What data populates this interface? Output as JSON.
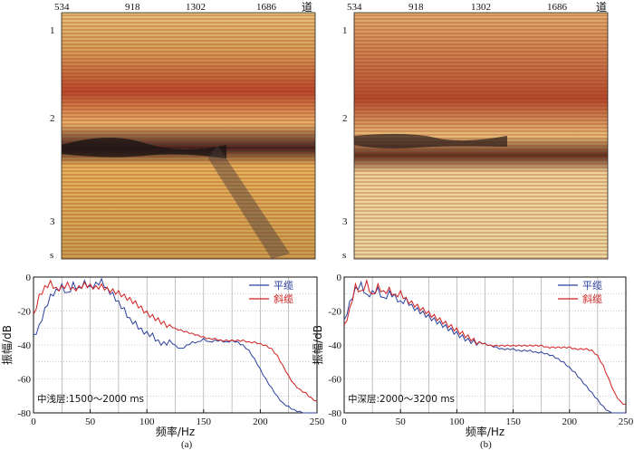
{
  "figure": {
    "sub_labels": [
      "(a)",
      "(b)"
    ],
    "trace_ticks": [
      "534",
      "918",
      "1302",
      "1686"
    ],
    "trace_unit": "道",
    "time_ticks": [
      "1",
      "2",
      "3"
    ],
    "time_unit": "s"
  },
  "chart_data": [
    {
      "type": "line",
      "panel": "a",
      "title": "",
      "note": "中浅层:1500～2000 ms",
      "xlabel": "频率/Hz",
      "ylabel": "振幅/dB",
      "xlim": [
        0,
        250
      ],
      "ylim": [
        -80,
        0
      ],
      "xticks": [
        "0",
        "50",
        "100",
        "150",
        "200",
        "250"
      ],
      "yticks": [
        "0",
        "-20",
        "-40",
        "-60",
        "-80"
      ],
      "legend_position": "top-right",
      "series": [
        {
          "name": "平缆",
          "color": "#2b3f9e",
          "x": [
            0,
            5,
            10,
            15,
            20,
            25,
            30,
            35,
            40,
            45,
            50,
            55,
            60,
            65,
            70,
            75,
            80,
            85,
            90,
            95,
            100,
            105,
            110,
            115,
            120,
            125,
            130,
            135,
            140,
            145,
            150,
            155,
            160,
            165,
            170,
            175,
            180,
            185,
            190,
            195,
            200,
            205,
            210,
            215,
            220,
            225,
            230,
            235,
            240,
            245,
            250
          ],
          "y": [
            -34,
            -28,
            -18,
            -10,
            -7,
            -4,
            -9,
            -3,
            -6,
            -2,
            -5,
            -3,
            -1,
            -6,
            -9,
            -14,
            -18,
            -24,
            -26,
            -30,
            -32,
            -33,
            -37,
            -38,
            -37,
            -40,
            -42,
            -40,
            -38,
            -38,
            -36,
            -38,
            -37,
            -37,
            -38,
            -37,
            -38,
            -40,
            -43,
            -48,
            -54,
            -60,
            -65,
            -70,
            -74,
            -76,
            -78,
            -79,
            -80,
            -80,
            -80
          ]
        },
        {
          "name": "斜缆",
          "color": "#d11f1f",
          "x": [
            0,
            5,
            10,
            15,
            20,
            25,
            30,
            35,
            40,
            45,
            50,
            55,
            60,
            65,
            70,
            75,
            80,
            85,
            90,
            95,
            100,
            105,
            110,
            115,
            120,
            125,
            130,
            135,
            140,
            145,
            150,
            155,
            160,
            165,
            170,
            175,
            180,
            185,
            190,
            195,
            200,
            205,
            210,
            215,
            220,
            225,
            230,
            235,
            240,
            245,
            250
          ],
          "y": [
            -22,
            -10,
            -5,
            -2,
            -6,
            -5,
            -3,
            -6,
            -5,
            -3,
            -4,
            -5,
            -4,
            -6,
            -7,
            -8,
            -10,
            -12,
            -14,
            -17,
            -20,
            -22,
            -24,
            -26,
            -28,
            -30,
            -31,
            -32,
            -33,
            -34,
            -35,
            -36,
            -36,
            -37,
            -37,
            -37,
            -37,
            -37,
            -38,
            -38,
            -39,
            -40,
            -42,
            -46,
            -52,
            -58,
            -63,
            -66,
            -68,
            -71,
            -73
          ]
        }
      ]
    },
    {
      "type": "line",
      "panel": "b",
      "title": "",
      "note": "中深层:2000～3200 ms",
      "xlabel": "频率/Hz",
      "ylabel": "振幅/dB",
      "xlim": [
        0,
        250
      ],
      "ylim": [
        -80,
        0
      ],
      "xticks": [
        "0",
        "50",
        "100",
        "150",
        "200",
        "250"
      ],
      "yticks": [
        "0",
        "-20",
        "-40",
        "-60",
        "-80"
      ],
      "legend_position": "top-right",
      "series": [
        {
          "name": "平缆",
          "color": "#2b3f9e",
          "x": [
            0,
            5,
            10,
            15,
            20,
            25,
            30,
            35,
            40,
            45,
            50,
            55,
            60,
            65,
            70,
            75,
            80,
            85,
            90,
            95,
            100,
            105,
            110,
            115,
            120,
            125,
            130,
            135,
            140,
            145,
            150,
            155,
            160,
            165,
            170,
            175,
            180,
            185,
            190,
            195,
            200,
            205,
            210,
            215,
            220,
            225,
            230,
            235,
            240,
            245,
            250
          ],
          "y": [
            -25,
            -14,
            -6,
            -3,
            -10,
            -8,
            -6,
            -12,
            -8,
            -10,
            -14,
            -12,
            -16,
            -18,
            -20,
            -22,
            -24,
            -26,
            -28,
            -30,
            -32,
            -34,
            -36,
            -37,
            -38,
            -39,
            -40,
            -41,
            -42,
            -42,
            -42,
            -43,
            -43,
            -43,
            -44,
            -44,
            -45,
            -46,
            -48,
            -50,
            -53,
            -56,
            -60,
            -64,
            -68,
            -72,
            -76,
            -79,
            -80,
            -80,
            -80
          ]
        },
        {
          "name": "斜缆",
          "color": "#d11f1f",
          "x": [
            0,
            5,
            10,
            15,
            20,
            25,
            30,
            35,
            40,
            45,
            50,
            55,
            60,
            65,
            70,
            75,
            80,
            85,
            90,
            95,
            100,
            105,
            110,
            115,
            120,
            125,
            130,
            135,
            140,
            145,
            150,
            155,
            160,
            165,
            170,
            175,
            180,
            185,
            190,
            195,
            200,
            205,
            210,
            215,
            220,
            225,
            230,
            235,
            240,
            245,
            250
          ],
          "y": [
            -28,
            -18,
            -4,
            -8,
            -2,
            -10,
            -4,
            -8,
            -6,
            -10,
            -8,
            -12,
            -14,
            -16,
            -18,
            -20,
            -22,
            -24,
            -26,
            -28,
            -30,
            -32,
            -34,
            -36,
            -38,
            -39,
            -40,
            -40,
            -40,
            -40,
            -40,
            -40,
            -40,
            -40,
            -40,
            -40,
            -41,
            -41,
            -41,
            -41,
            -41,
            -42,
            -42,
            -42,
            -43,
            -46,
            -52,
            -60,
            -68,
            -73,
            -75
          ]
        }
      ]
    }
  ]
}
